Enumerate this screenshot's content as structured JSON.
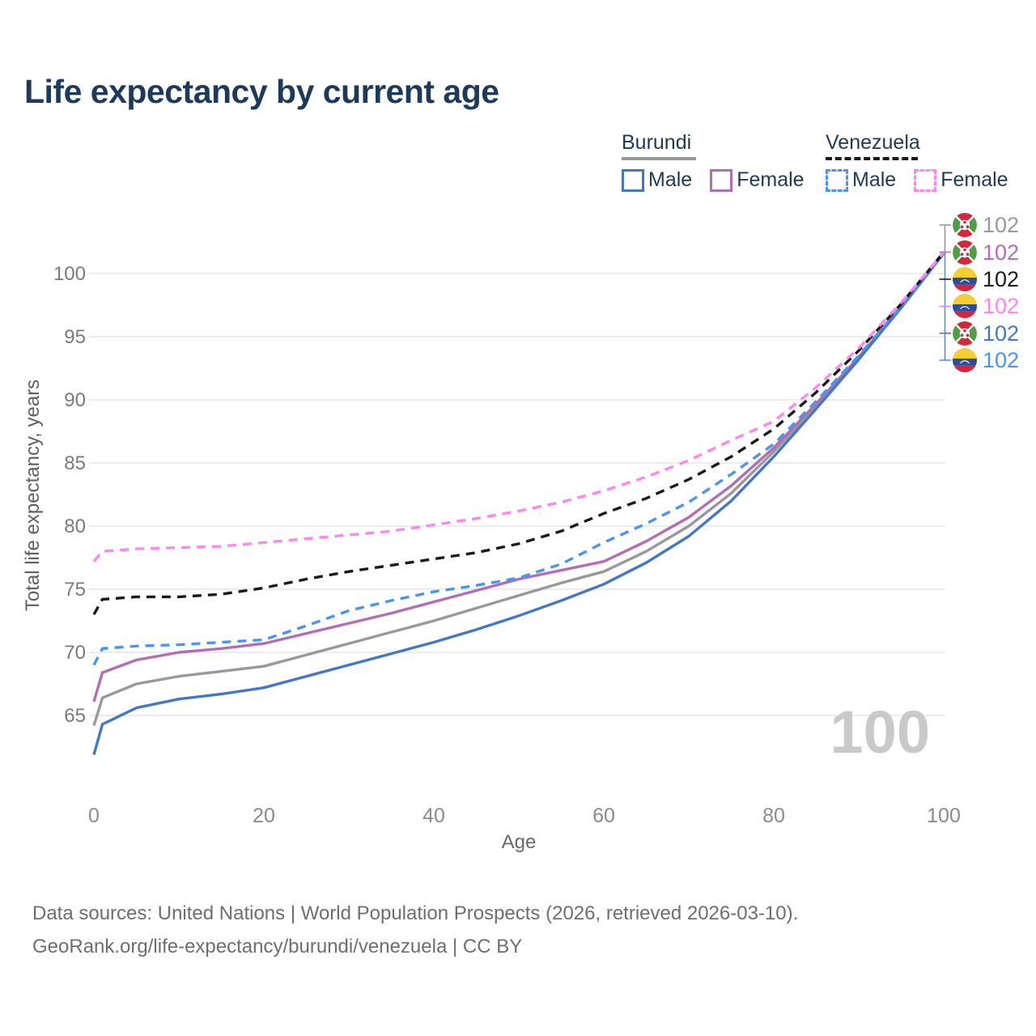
{
  "title": "Life expectancy by current age",
  "watermark": "100",
  "legend": {
    "groups": [
      {
        "country": "Burundi",
        "line_style": "solid",
        "underline_color": "#999999",
        "items": [
          {
            "label": "Male",
            "color": "#4477c4",
            "dashed": false
          },
          {
            "label": "Female",
            "color": "#b46cb4",
            "dashed": false
          }
        ]
      },
      {
        "country": "Venezuela",
        "line_style": "dashed",
        "underline_color": "#1a1a1a",
        "items": [
          {
            "label": "Male",
            "color": "#4b94f0",
            "dashed": true
          },
          {
            "label": "Female",
            "color": "#ff86f0",
            "dashed": true
          }
        ]
      }
    ]
  },
  "chart_data": {
    "type": "line",
    "title": "Life expectancy by current age",
    "xlabel": "Age",
    "ylabel": "Total life expectancy, years",
    "xlim": [
      0,
      100
    ],
    "ylim": [
      59,
      104
    ],
    "x_ticks": [
      0,
      20,
      40,
      60,
      80,
      100
    ],
    "y_ticks": [
      65,
      70,
      75,
      80,
      85,
      90,
      95,
      100
    ],
    "grid": "horizontal",
    "legend_position": "top-right",
    "ages": [
      0,
      1,
      5,
      10,
      15,
      20,
      25,
      30,
      35,
      40,
      45,
      50,
      55,
      60,
      65,
      70,
      75,
      80,
      85,
      90,
      95,
      100
    ],
    "series": [
      {
        "id": "burundi-both",
        "name": "Burundi — Both sexes",
        "color": "#999999",
        "dashed": false,
        "values": [
          64.2,
          66.4,
          67.5,
          68.1,
          68.5,
          68.9,
          69.8,
          70.7,
          71.6,
          72.5,
          73.5,
          74.5,
          75.5,
          76.4,
          78.0,
          80.0,
          82.6,
          85.9,
          89.5,
          93.3,
          97.3,
          101.6
        ],
        "end_label": "102"
      },
      {
        "id": "burundi-female",
        "name": "Burundi — Female",
        "color": "#b46cb4",
        "dashed": false,
        "values": [
          66.1,
          68.4,
          69.4,
          70.0,
          70.3,
          70.7,
          71.5,
          72.3,
          73.1,
          74.0,
          74.9,
          75.8,
          76.5,
          77.2,
          78.8,
          80.7,
          83.2,
          86.2,
          89.7,
          93.4,
          97.4,
          101.6
        ],
        "end_label": "102"
      },
      {
        "id": "burundi-male",
        "name": "Burundi — Male",
        "color": "#4477c4",
        "dashed": false,
        "values": [
          61.9,
          64.3,
          65.6,
          66.3,
          66.7,
          67.2,
          68.1,
          69.0,
          69.9,
          70.8,
          71.8,
          72.9,
          74.1,
          75.4,
          77.1,
          79.2,
          82.0,
          85.5,
          89.3,
          93.2,
          97.3,
          101.6
        ],
        "end_label": "102"
      },
      {
        "id": "venezuela-male",
        "name": "Venezuela — Male",
        "color": "#4b94f0",
        "dashed": true,
        "values": [
          69.0,
          70.3,
          70.5,
          70.6,
          70.8,
          71.0,
          72.1,
          73.3,
          74.1,
          74.8,
          75.3,
          75.9,
          77.0,
          78.7,
          80.2,
          81.9,
          84.1,
          86.5,
          89.9,
          93.5,
          97.4,
          101.6
        ],
        "end_label": "102"
      },
      {
        "id": "venezuela-both",
        "name": "Venezuela — Both sexes",
        "color": "#1a1a1a",
        "dashed": true,
        "values": [
          73.0,
          74.2,
          74.4,
          74.4,
          74.6,
          75.1,
          75.8,
          76.4,
          76.9,
          77.4,
          77.9,
          78.6,
          79.6,
          81.0,
          82.2,
          83.7,
          85.5,
          87.7,
          90.6,
          93.9,
          97.6,
          101.7
        ],
        "end_label": "102"
      },
      {
        "id": "venezuela-female",
        "name": "Venezuela — Female",
        "color": "#ff86f0",
        "dashed": true,
        "values": [
          77.2,
          78.0,
          78.2,
          78.3,
          78.4,
          78.7,
          79.0,
          79.3,
          79.6,
          80.1,
          80.6,
          81.2,
          81.9,
          82.8,
          83.9,
          85.2,
          86.8,
          88.3,
          91.0,
          94.1,
          97.7,
          101.7
        ],
        "end_label": "102"
      }
    ]
  },
  "end_labels": [
    {
      "flag": "burundi",
      "value": "102",
      "color": "#999999"
    },
    {
      "flag": "burundi",
      "value": "102",
      "color": "#b46cb4"
    },
    {
      "flag": "venezuela",
      "value": "102",
      "color": "#1a1a1a"
    },
    {
      "flag": "venezuela",
      "value": "102",
      "color": "#ff86f0"
    },
    {
      "flag": "burundi",
      "value": "102",
      "color": "#4477c4"
    },
    {
      "flag": "venezuela",
      "value": "102",
      "color": "#4b94f0"
    }
  ],
  "footer": {
    "line1": "Data sources: United Nations | World Population Prospects (2026, retrieved 2026-03-10).",
    "line2": "GeoRank.org/life-expectancy/burundi/venezuela | CC BY"
  }
}
